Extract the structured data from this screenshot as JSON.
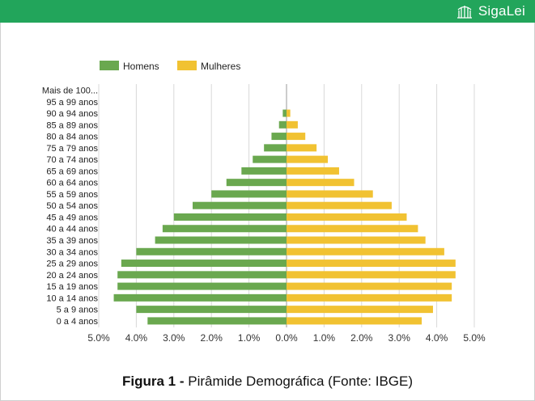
{
  "header": {
    "brand": "SigaLei",
    "logo_icon": "building-columns-icon"
  },
  "caption": {
    "label": "Figura 1 -",
    "text": " Pirâmide Demográfica (Fonte: IBGE)"
  },
  "chart_data": {
    "type": "bar",
    "orientation": "horizontal-diverging",
    "title": "Pirâmide Demográfica",
    "categories": [
      "Mais de 100...",
      "95 a 99 anos",
      "90 a 94 anos",
      "85 a 89 anos",
      "80 a 84 anos",
      "75 a 79 anos",
      "70 a 74 anos",
      "65 a 69 anos",
      "60 a 64 anos",
      "55 a 59 anos",
      "50 a 54 anos",
      "45 a 49 anos",
      "40 a 44 anos",
      "35 a 39 anos",
      "30 a 34 anos",
      "25 a 29 anos",
      "20 a 24 anos",
      "15 a 19 anos",
      "10 a 14 anos",
      "5 a 9 anos",
      "0 a 4 anos"
    ],
    "series": [
      {
        "name": "Homens",
        "color": "#6aa84f",
        "values": [
          0,
          0,
          0.1,
          0.2,
          0.4,
          0.6,
          0.9,
          1.2,
          1.6,
          2.0,
          2.5,
          3.0,
          3.3,
          3.5,
          4.0,
          4.4,
          4.5,
          4.5,
          4.6,
          4.0,
          3.7
        ]
      },
      {
        "name": "Mulheres",
        "color": "#f1c232",
        "values": [
          0,
          0,
          0.1,
          0.3,
          0.5,
          0.8,
          1.1,
          1.4,
          1.8,
          2.3,
          2.8,
          3.2,
          3.5,
          3.7,
          4.2,
          4.5,
          4.5,
          4.4,
          4.4,
          3.9,
          3.6
        ]
      }
    ],
    "xlim": [
      -5.0,
      5.0
    ],
    "xticks": [
      -5,
      -4,
      -3,
      -2,
      -1,
      0,
      1,
      2,
      3,
      4,
      5
    ],
    "xtick_labels": [
      "5.0%",
      "4.0%",
      "3.0%",
      "2.0%",
      "1.0%",
      "0.0%",
      "1.0%",
      "2.0%",
      "3.0%",
      "4.0%",
      "5.0%"
    ],
    "legend_position": "top-left",
    "grid": true
  }
}
